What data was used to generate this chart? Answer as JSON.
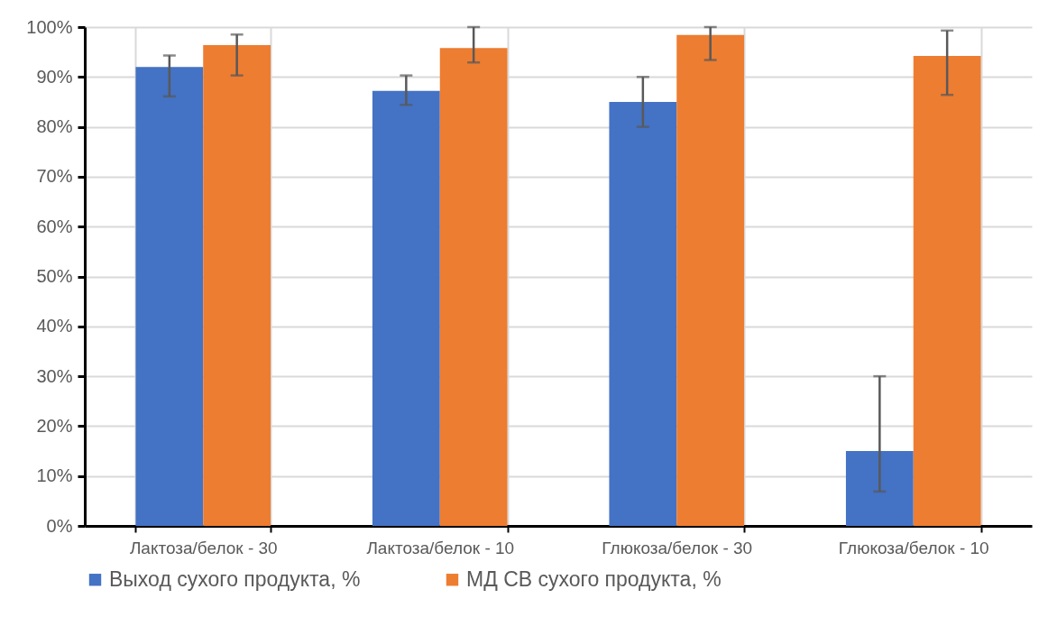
{
  "chart_data": {
    "type": "bar",
    "categories": [
      "Лактоза/белок - 30",
      "Лактоза/белок - 10",
      "Глюкоза/белок - 30",
      "Глюкоза/белок - 10"
    ],
    "series": [
      {
        "name": "Выход сухого продукта, %",
        "color": "#4472c4",
        "values": [
          92.0,
          87.2,
          85.0,
          15.0
        ],
        "errors": [
          [
            86.1,
            94.3
          ],
          [
            84.4,
            90.3
          ],
          [
            80.0,
            90.0
          ],
          [
            6.9,
            30.0
          ]
        ]
      },
      {
        "name": "МД СВ сухого продукта, %",
        "color": "#ed7d31",
        "values": [
          96.4,
          95.8,
          98.4,
          94.2
        ],
        "errors": [
          [
            90.3,
            98.5
          ],
          [
            92.9,
            100.0
          ],
          [
            93.4,
            100.0
          ],
          [
            86.4,
            99.3
          ]
        ]
      }
    ],
    "ylim": [
      0,
      100
    ],
    "yticks": [
      {
        "value": 0,
        "label": "0%"
      },
      {
        "value": 10,
        "label": "10%"
      },
      {
        "value": 20,
        "label": "20%"
      },
      {
        "value": 30,
        "label": "30%"
      },
      {
        "value": 40,
        "label": "40%"
      },
      {
        "value": 50,
        "label": "50%"
      },
      {
        "value": 60,
        "label": "60%"
      },
      {
        "value": 70,
        "label": "70%"
      },
      {
        "value": 80,
        "label": "80%"
      },
      {
        "value": 90,
        "label": "90%"
      },
      {
        "value": 100,
        "label": "100%"
      }
    ],
    "grid": true,
    "legend": "bottom"
  }
}
